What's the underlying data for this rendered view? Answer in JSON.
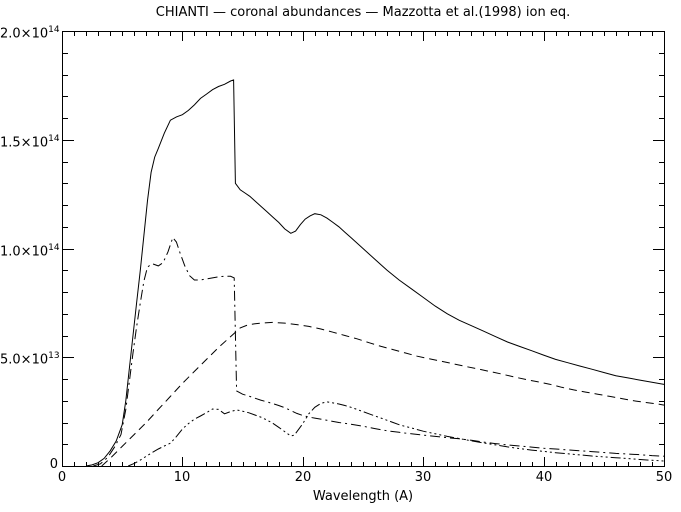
{
  "window": {
    "background": "#ffffff",
    "foreground": "#000000"
  },
  "chart_data": {
    "type": "line",
    "title": "CHIANTI — coronal abundances — Mazzotta et al.(1998) ion eq.",
    "xlabel": "Wavelength (A)",
    "ylabel": "",
    "x_range": [
      0,
      50
    ],
    "y_range_1e13": [
      0,
      20
    ],
    "x_major_ticks": [
      0,
      10,
      20,
      30,
      40,
      50
    ],
    "x_minor_step": 1,
    "y_major_ticks_1e13": [
      0,
      5,
      10,
      15,
      20
    ],
    "y_minor_step_1e13": 1,
    "grid": false,
    "legend": false,
    "frame": true,
    "axis_color": "#000000",
    "y_tick_labels": [
      {
        "value_1e13": 0,
        "mantissa": "0",
        "exponent": ""
      },
      {
        "value_1e13": 5,
        "mantissa": "5.0×10",
        "exponent": "13"
      },
      {
        "value_1e13": 10,
        "mantissa": "1.0×10",
        "exponent": "14"
      },
      {
        "value_1e13": 15,
        "mantissa": "1.5×10",
        "exponent": "14"
      },
      {
        "value_1e13": 20,
        "mantissa": "2.0×10",
        "exponent": "14"
      }
    ],
    "x_tick_labels": [
      "0",
      "10",
      "20",
      "30",
      "40",
      "50"
    ],
    "series": [
      {
        "name": "solid",
        "linestyle": "solid",
        "color": "#000000",
        "points_x_angstrom_y_1e13": [
          [
            2,
            0
          ],
          [
            2.5,
            0.05
          ],
          [
            3,
            0.15
          ],
          [
            3.5,
            0.35
          ],
          [
            4,
            0.7
          ],
          [
            4.5,
            1.15
          ],
          [
            5,
            1.9
          ],
          [
            5.3,
            3
          ],
          [
            5.6,
            4.5
          ],
          [
            5.9,
            6
          ],
          [
            6.2,
            7.5
          ],
          [
            6.5,
            9
          ],
          [
            6.8,
            10.6
          ],
          [
            7.1,
            12.2
          ],
          [
            7.4,
            13.5
          ],
          [
            7.7,
            14.2
          ],
          [
            8,
            14.6
          ],
          [
            8.5,
            15.3
          ],
          [
            9,
            15.9
          ],
          [
            9.5,
            16.05
          ],
          [
            10,
            16.15
          ],
          [
            10.5,
            16.35
          ],
          [
            11,
            16.6
          ],
          [
            11.5,
            16.9
          ],
          [
            12,
            17.1
          ],
          [
            12.5,
            17.3
          ],
          [
            13,
            17.45
          ],
          [
            13.5,
            17.55
          ],
          [
            14,
            17.7
          ],
          [
            14.25,
            17.75
          ],
          [
            14.4,
            13
          ],
          [
            14.8,
            12.7
          ],
          [
            15.2,
            12.55
          ],
          [
            15.6,
            12.4
          ],
          [
            16,
            12.2
          ],
          [
            16.5,
            11.95
          ],
          [
            17,
            11.7
          ],
          [
            17.5,
            11.45
          ],
          [
            18,
            11.2
          ],
          [
            18.5,
            10.9
          ],
          [
            19,
            10.7
          ],
          [
            19.4,
            10.8
          ],
          [
            19.8,
            11.1
          ],
          [
            20.2,
            11.35
          ],
          [
            20.6,
            11.5
          ],
          [
            21,
            11.6
          ],
          [
            21.5,
            11.55
          ],
          [
            22,
            11.4
          ],
          [
            22.5,
            11.2
          ],
          [
            23,
            11
          ],
          [
            23.5,
            10.75
          ],
          [
            24,
            10.5
          ],
          [
            25,
            10
          ],
          [
            26,
            9.5
          ],
          [
            27,
            9
          ],
          [
            28,
            8.55
          ],
          [
            29,
            8.15
          ],
          [
            30,
            7.75
          ],
          [
            31,
            7.35
          ],
          [
            32,
            7
          ],
          [
            33,
            6.7
          ],
          [
            34,
            6.45
          ],
          [
            35,
            6.2
          ],
          [
            36,
            5.95
          ],
          [
            37,
            5.7
          ],
          [
            38,
            5.5
          ],
          [
            39,
            5.3
          ],
          [
            40,
            5.1
          ],
          [
            41,
            4.9
          ],
          [
            42,
            4.75
          ],
          [
            43,
            4.6
          ],
          [
            44,
            4.45
          ],
          [
            45,
            4.3
          ],
          [
            46,
            4.15
          ],
          [
            47,
            4.05
          ],
          [
            48,
            3.95
          ],
          [
            49,
            3.85
          ],
          [
            50,
            3.75
          ]
        ]
      },
      {
        "name": "dash-dot",
        "linestyle": "dash-dot",
        "color": "#000000",
        "points_x_angstrom_y_1e13": [
          [
            2.6,
            0
          ],
          [
            3.2,
            0.1
          ],
          [
            3.8,
            0.4
          ],
          [
            4.4,
            0.9
          ],
          [
            4.9,
            1.45
          ],
          [
            5.3,
            2.6
          ],
          [
            5.6,
            3.9
          ],
          [
            5.9,
            5.2
          ],
          [
            6.2,
            6.4
          ],
          [
            6.5,
            7.5
          ],
          [
            6.8,
            8.5
          ],
          [
            7.1,
            9.15
          ],
          [
            7.5,
            9.3
          ],
          [
            8,
            9.2
          ],
          [
            8.4,
            9.35
          ],
          [
            8.8,
            9.85
          ],
          [
            9.2,
            10.5
          ],
          [
            9.5,
            10.3
          ],
          [
            9.8,
            9.8
          ],
          [
            10.2,
            9.2
          ],
          [
            10.6,
            8.75
          ],
          [
            11,
            8.55
          ],
          [
            11.5,
            8.55
          ],
          [
            12,
            8.6
          ],
          [
            12.5,
            8.65
          ],
          [
            13,
            8.7
          ],
          [
            13.5,
            8.72
          ],
          [
            14,
            8.72
          ],
          [
            14.3,
            8.65
          ],
          [
            14.5,
            3.45
          ],
          [
            15,
            3.3
          ],
          [
            15.5,
            3.22
          ],
          [
            16,
            3.12
          ],
          [
            16.5,
            3.03
          ],
          [
            17,
            2.95
          ],
          [
            17.5,
            2.87
          ],
          [
            18,
            2.78
          ],
          [
            18.5,
            2.68
          ],
          [
            19,
            2.55
          ],
          [
            19.5,
            2.42
          ],
          [
            20,
            2.32
          ],
          [
            20.5,
            2.25
          ],
          [
            21,
            2.2
          ],
          [
            22,
            2.1
          ],
          [
            23,
            2
          ],
          [
            24,
            1.92
          ],
          [
            25,
            1.83
          ],
          [
            26,
            1.72
          ],
          [
            27,
            1.62
          ],
          [
            28,
            1.55
          ],
          [
            29,
            1.48
          ],
          [
            30,
            1.42
          ],
          [
            31,
            1.36
          ],
          [
            32,
            1.3
          ],
          [
            33,
            1.25
          ],
          [
            34,
            1.18
          ],
          [
            35,
            1.1
          ],
          [
            36,
            1.03
          ],
          [
            37,
            0.97
          ],
          [
            38,
            0.92
          ],
          [
            39,
            0.87
          ],
          [
            40,
            0.82
          ],
          [
            41,
            0.78
          ],
          [
            42,
            0.74
          ],
          [
            43,
            0.7
          ],
          [
            44,
            0.66
          ],
          [
            45,
            0.62
          ],
          [
            46,
            0.58
          ],
          [
            47,
            0.55
          ],
          [
            48,
            0.52
          ],
          [
            49,
            0.48
          ],
          [
            50,
            0.45
          ]
        ]
      },
      {
        "name": "dashed",
        "linestyle": "dashed",
        "color": "#000000",
        "points_x_angstrom_y_1e13": [
          [
            3.3,
            0
          ],
          [
            4,
            0.35
          ],
          [
            5,
            0.9
          ],
          [
            6,
            1.45
          ],
          [
            7,
            2
          ],
          [
            8,
            2.6
          ],
          [
            9,
            3.2
          ],
          [
            10,
            3.8
          ],
          [
            11,
            4.35
          ],
          [
            12,
            4.9
          ],
          [
            13,
            5.45
          ],
          [
            14,
            5.95
          ],
          [
            14.8,
            6.35
          ],
          [
            15.5,
            6.5
          ],
          [
            16.5,
            6.57
          ],
          [
            17.5,
            6.6
          ],
          [
            18.5,
            6.57
          ],
          [
            19.5,
            6.5
          ],
          [
            20.5,
            6.42
          ],
          [
            21.5,
            6.3
          ],
          [
            22.5,
            6.15
          ],
          [
            23.5,
            6
          ],
          [
            24.5,
            5.85
          ],
          [
            25.5,
            5.67
          ],
          [
            26.5,
            5.5
          ],
          [
            27.5,
            5.35
          ],
          [
            28.5,
            5.2
          ],
          [
            29.5,
            5.05
          ],
          [
            30.5,
            4.93
          ],
          [
            31.5,
            4.82
          ],
          [
            32.5,
            4.7
          ],
          [
            33.5,
            4.58
          ],
          [
            34.5,
            4.47
          ],
          [
            35.5,
            4.35
          ],
          [
            36.5,
            4.23
          ],
          [
            37.5,
            4.1
          ],
          [
            38.5,
            3.98
          ],
          [
            39.5,
            3.87
          ],
          [
            40.5,
            3.76
          ],
          [
            41.5,
            3.62
          ],
          [
            42.5,
            3.5
          ],
          [
            43.5,
            3.4
          ],
          [
            44.5,
            3.3
          ],
          [
            45.5,
            3.2
          ],
          [
            46.5,
            3.1
          ],
          [
            47.5,
            3
          ],
          [
            48.5,
            2.92
          ],
          [
            49.5,
            2.85
          ],
          [
            50,
            2.8
          ]
        ]
      },
      {
        "name": "dash-dot-dot-dot",
        "linestyle": "dash-dot-dot-dot",
        "color": "#000000",
        "points_x_angstrom_y_1e13": [
          [
            5.5,
            0
          ],
          [
            6,
            0.12
          ],
          [
            6.5,
            0.27
          ],
          [
            7,
            0.45
          ],
          [
            7.5,
            0.62
          ],
          [
            8,
            0.78
          ],
          [
            8.5,
            0.92
          ],
          [
            9,
            1.05
          ],
          [
            9.5,
            1.35
          ],
          [
            10,
            1.7
          ],
          [
            10.5,
            1.95
          ],
          [
            11,
            2.15
          ],
          [
            11.5,
            2.3
          ],
          [
            12,
            2.45
          ],
          [
            12.5,
            2.62
          ],
          [
            13,
            2.6
          ],
          [
            13.5,
            2.4
          ],
          [
            14,
            2.5
          ],
          [
            14.5,
            2.58
          ],
          [
            15,
            2.52
          ],
          [
            15.5,
            2.45
          ],
          [
            16,
            2.35
          ],
          [
            16.5,
            2.25
          ],
          [
            17,
            2.12
          ],
          [
            17.5,
            1.97
          ],
          [
            18,
            1.78
          ],
          [
            18.5,
            1.58
          ],
          [
            19,
            1.38
          ],
          [
            19.3,
            1.42
          ],
          [
            19.7,
            1.72
          ],
          [
            20,
            1.95
          ],
          [
            20.5,
            2.4
          ],
          [
            21,
            2.7
          ],
          [
            21.5,
            2.88
          ],
          [
            22,
            2.95
          ],
          [
            22.5,
            2.9
          ],
          [
            23,
            2.85
          ],
          [
            23.5,
            2.78
          ],
          [
            24,
            2.7
          ],
          [
            24.5,
            2.6
          ],
          [
            25,
            2.5
          ],
          [
            25.5,
            2.4
          ],
          [
            26,
            2.3
          ],
          [
            26.5,
            2.2
          ],
          [
            27,
            2.1
          ],
          [
            27.5,
            2
          ],
          [
            28,
            1.9
          ],
          [
            28.5,
            1.82
          ],
          [
            29,
            1.75
          ],
          [
            30,
            1.6
          ],
          [
            31,
            1.48
          ],
          [
            32,
            1.36
          ],
          [
            33,
            1.26
          ],
          [
            34,
            1.16
          ],
          [
            35,
            1.06
          ],
          [
            36,
            0.97
          ],
          [
            37,
            0.88
          ],
          [
            38,
            0.8
          ],
          [
            39,
            0.73
          ],
          [
            40,
            0.67
          ],
          [
            41,
            0.61
          ],
          [
            42,
            0.56
          ],
          [
            43,
            0.51
          ],
          [
            44,
            0.46
          ],
          [
            45,
            0.42
          ],
          [
            46,
            0.38
          ],
          [
            47,
            0.34
          ],
          [
            48,
            0.3
          ],
          [
            49,
            0.26
          ],
          [
            50,
            0.23
          ]
        ]
      }
    ]
  }
}
